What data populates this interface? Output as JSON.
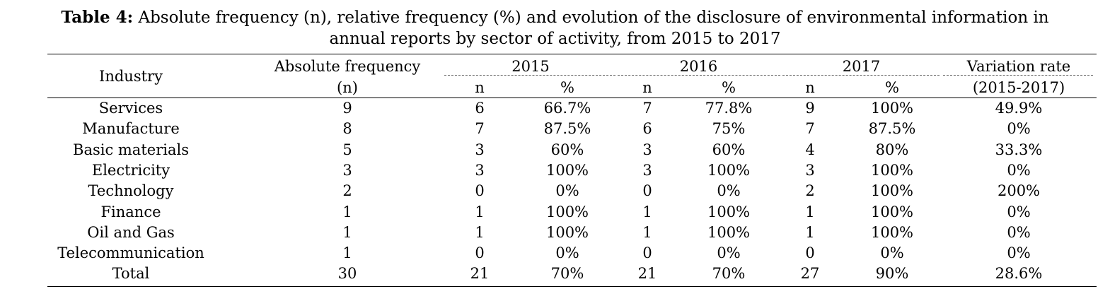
{
  "caption": {
    "label": "Table 4:",
    "line1": "Absolute frequency (n), relative frequency (%) and evolution of the disclosure of environmental information in",
    "line2": "annual reports by sector of activity, from 2015 to 2017"
  },
  "header": {
    "industry": "Industry",
    "abs_freq_line1": "Absolute frequency",
    "abs_freq_line2": "(n)",
    "year_2015": "2015",
    "year_2016": "2016",
    "year_2017": "2017",
    "variation_line1": "Variation rate",
    "variation_line2": "(2015-2017)",
    "n": "n",
    "pct": "%"
  },
  "rows": [
    {
      "industry": "Services",
      "abs": "9",
      "n2015": "6",
      "p2015": "66.7%",
      "n2016": "7",
      "p2016": "77.8%",
      "n2017": "9",
      "p2017": "100%",
      "var": "49.9%"
    },
    {
      "industry": "Manufacture",
      "abs": "8",
      "n2015": "7",
      "p2015": "87.5%",
      "n2016": "6",
      "p2016": "75%",
      "n2017": "7",
      "p2017": "87.5%",
      "var": "0%"
    },
    {
      "industry": "Basic materials",
      "abs": "5",
      "n2015": "3",
      "p2015": "60%",
      "n2016": "3",
      "p2016": "60%",
      "n2017": "4",
      "p2017": "80%",
      "var": "33.3%"
    },
    {
      "industry": "Electricity",
      "abs": "3",
      "n2015": "3",
      "p2015": "100%",
      "n2016": "3",
      "p2016": "100%",
      "n2017": "3",
      "p2017": "100%",
      "var": "0%"
    },
    {
      "industry": "Technology",
      "abs": "2",
      "n2015": "0",
      "p2015": "0%",
      "n2016": "0",
      "p2016": "0%",
      "n2017": "2",
      "p2017": "100%",
      "var": "200%"
    },
    {
      "industry": "Finance",
      "abs": "1",
      "n2015": "1",
      "p2015": "100%",
      "n2016": "1",
      "p2016": "100%",
      "n2017": "1",
      "p2017": "100%",
      "var": "0%"
    },
    {
      "industry": "Oil and Gas",
      "abs": "1",
      "n2015": "1",
      "p2015": "100%",
      "n2016": "1",
      "p2016": "100%",
      "n2017": "1",
      "p2017": "100%",
      "var": "0%"
    },
    {
      "industry": "Telecommunication",
      "abs": "1",
      "n2015": "0",
      "p2015": "0%",
      "n2016": "0",
      "p2016": "0%",
      "n2017": "0",
      "p2017": "0%",
      "var": "0%"
    },
    {
      "industry": "Total",
      "abs": "30",
      "n2015": "21",
      "p2015": "70%",
      "n2016": "21",
      "p2016": "70%",
      "n2017": "27",
      "p2017": "90%",
      "var": "28.6%"
    }
  ]
}
